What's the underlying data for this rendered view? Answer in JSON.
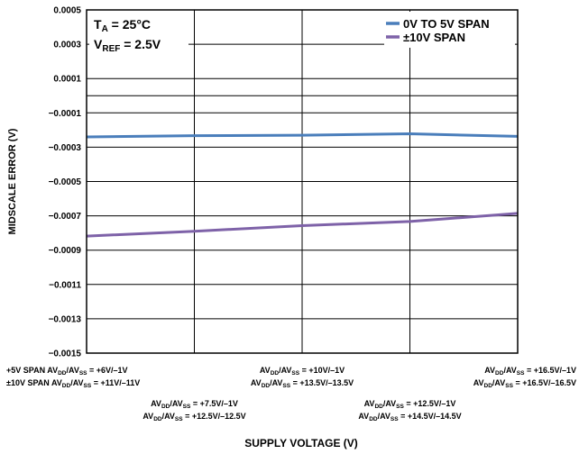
{
  "chart_data": {
    "type": "line",
    "xlabel": "SUPPLY VOLTAGE (V)",
    "ylabel": "MIDSCALE ERROR (V)",
    "ylim": [
      -0.0015,
      0.0005
    ],
    "yticks": [
      0.0005,
      0.0003,
      0.0001,
      -0.0001,
      -0.0003,
      -0.0005,
      -0.0007,
      -0.0009,
      -0.0011,
      -0.0013,
      -0.0015
    ],
    "ytick_labels": [
      "0.0005",
      "0.0003",
      "0.0001",
      "−0.0001",
      "−0.0003",
      "−0.0005",
      "−0.0007",
      "−0.0009",
      "−0.0011",
      "−0.0013",
      "−0.0015"
    ],
    "categories": [
      1,
      2,
      3,
      4,
      5
    ],
    "category_labels": [
      {
        "line1": {
          "pre": "+5V SPAN AV",
          "sub1": "DD",
          "mid": "/AV",
          "sub2": "SS",
          "post": " = +6V/–1V"
        },
        "line2": {
          "pre": "±10V SPAN AV",
          "sub1": "DD",
          "mid": "/AV",
          "sub2": "SS",
          "post": " = +11V/–11V"
        }
      },
      {
        "line1": {
          "pre": "AV",
          "sub1": "DD",
          "mid": "/AV",
          "sub2": "SS",
          "post": " = +7.5V/–1V"
        },
        "line2": {
          "pre": "AV",
          "sub1": "DD",
          "mid": "/AV",
          "sub2": "SS",
          "post": " = +12.5V/–12.5V"
        }
      },
      {
        "line1": {
          "pre": "AV",
          "sub1": "DD",
          "mid": "/AV",
          "sub2": "SS",
          "post": " = +10V/–1V"
        },
        "line2": {
          "pre": "AV",
          "sub1": "DD",
          "mid": "/AV",
          "sub2": "SS",
          "post": " = +13.5V/–13.5V"
        }
      },
      {
        "line1": {
          "pre": "AV",
          "sub1": "DD",
          "mid": "/AV",
          "sub2": "SS",
          "post": " = +12.5V/–1V"
        },
        "line2": {
          "pre": "AV",
          "sub1": "DD",
          "mid": "/AV",
          "sub2": "SS",
          "post": " = +14.5V/–14.5V"
        }
      },
      {
        "line1": {
          "pre": "AV",
          "sub1": "DD",
          "mid": "/AV",
          "sub2": "SS",
          "post": " = +16.5V/–1V"
        },
        "line2": {
          "pre": "AV",
          "sub1": "DD",
          "mid": "/AV",
          "sub2": "SS",
          "post": " = +16.5V/–16.5V"
        }
      }
    ],
    "series": [
      {
        "name": "0V TO 5V SPAN",
        "color": "#4a7ebb",
        "values": [
          -0.00024,
          -0.000233,
          -0.00023,
          -0.000222,
          -0.000237
        ]
      },
      {
        "name": "±10V SPAN",
        "color": "#7e62a8",
        "values": [
          -0.000818,
          -0.00079,
          -0.000757,
          -0.000733,
          -0.000686
        ]
      }
    ],
    "annotations": {
      "ta": {
        "main": "T",
        "sub": "A",
        "rest": " = 25°C"
      },
      "vref": {
        "main": "V",
        "sub": "REF",
        "rest": " = 2.5V"
      }
    },
    "legend_position": "top-right",
    "grid": true
  }
}
